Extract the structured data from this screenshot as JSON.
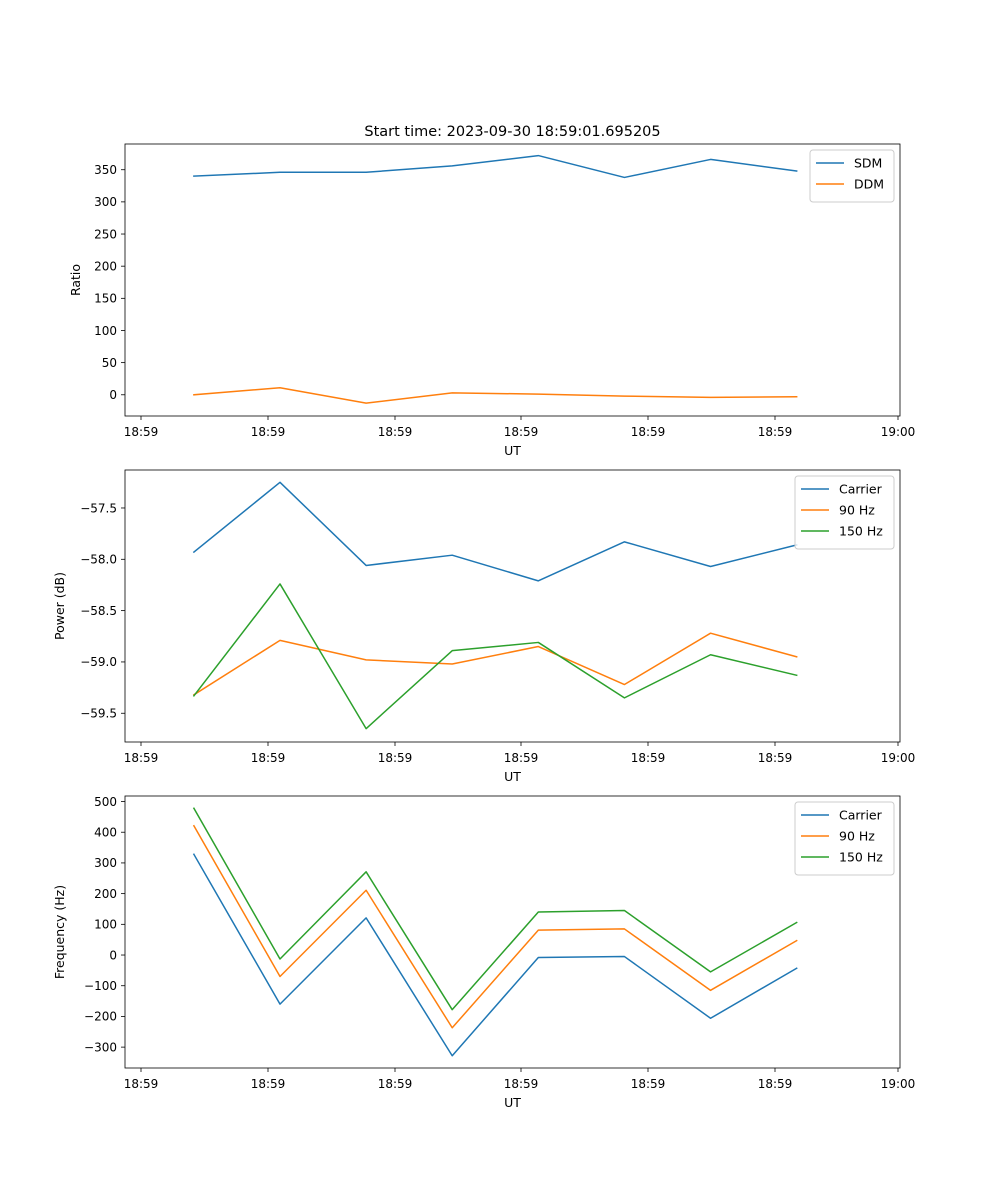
{
  "figure": {
    "title": "Start time: 2023-09-30 18:59:01.695205"
  },
  "colors": {
    "blue": "#1f77b4",
    "orange": "#ff7f0e",
    "green": "#2ca02c",
    "axis": "#000000",
    "legend_border": "#cccccc"
  },
  "chart_data": [
    {
      "type": "line",
      "title": "Start time: 2023-09-30 18:59:01.695205",
      "xlabel": "UT",
      "ylabel": "Ratio",
      "x_ticks": [
        "18:59",
        "18:59",
        "18:59",
        "18:59",
        "18:59",
        "18:59",
        "19:00"
      ],
      "x": [
        1,
        2,
        3,
        4,
        5,
        6,
        7,
        8
      ],
      "xlim": [
        0.2,
        9.2
      ],
      "ylim": [
        -33,
        390
      ],
      "y_ticks": [
        0,
        50,
        100,
        150,
        200,
        250,
        300,
        350
      ],
      "y_tick_labels": [
        "0",
        "50",
        "100",
        "150",
        "200",
        "250",
        "300",
        "350"
      ],
      "legend_position": "upper-right",
      "series": [
        {
          "name": "SDM",
          "color": "blue",
          "values": [
            340,
            346,
            346,
            356,
            372,
            338,
            366,
            348
          ]
        },
        {
          "name": "DDM",
          "color": "orange",
          "values": [
            0,
            11,
            -13,
            3,
            1,
            -2,
            -4,
            -3
          ]
        }
      ]
    },
    {
      "type": "line",
      "title": "",
      "xlabel": "UT",
      "ylabel": "Power (dB)",
      "x_ticks": [
        "18:59",
        "18:59",
        "18:59",
        "18:59",
        "18:59",
        "18:59",
        "19:00"
      ],
      "x": [
        1,
        2,
        3,
        4,
        5,
        6,
        7,
        8
      ],
      "xlim": [
        0.2,
        9.2
      ],
      "ylim": [
        -59.78,
        -57.13
      ],
      "y_ticks": [
        -59.5,
        -59.0,
        -58.5,
        -58.0,
        -57.5
      ],
      "y_tick_labels": [
        "−59.5",
        "−59.0",
        "−58.5",
        "−58.0",
        "−57.5"
      ],
      "legend_position": "upper-right",
      "series": [
        {
          "name": "Carrier",
          "color": "blue",
          "values": [
            -57.93,
            -57.25,
            -58.06,
            -57.96,
            -58.21,
            -57.83,
            -58.07,
            -57.86
          ]
        },
        {
          "name": "90 Hz",
          "color": "orange",
          "values": [
            -59.32,
            -58.79,
            -58.98,
            -59.02,
            -58.85,
            -59.22,
            -58.72,
            -58.95
          ]
        },
        {
          "name": "150 Hz",
          "color": "green",
          "values": [
            -59.33,
            -58.24,
            -59.65,
            -58.89,
            -58.81,
            -59.35,
            -58.93,
            -59.13
          ]
        }
      ]
    },
    {
      "type": "line",
      "title": "",
      "xlabel": "UT",
      "ylabel": "Frequency (Hz)",
      "x_ticks": [
        "18:59",
        "18:59",
        "18:59",
        "18:59",
        "18:59",
        "18:59",
        "19:00"
      ],
      "x": [
        1,
        2,
        3,
        4,
        5,
        6,
        7,
        8
      ],
      "xlim": [
        0.2,
        9.2
      ],
      "ylim": [
        -368,
        518
      ],
      "y_ticks": [
        -300,
        -200,
        -100,
        0,
        100,
        200,
        300,
        400,
        500
      ],
      "y_tick_labels": [
        "−300",
        "−200",
        "−100",
        "0",
        "100",
        "200",
        "300",
        "400",
        "500"
      ],
      "legend_position": "upper-right",
      "series": [
        {
          "name": "Carrier",
          "color": "blue",
          "values": [
            328,
            -160,
            121,
            -328,
            -8,
            -5,
            -206,
            -43
          ]
        },
        {
          "name": "90 Hz",
          "color": "orange",
          "values": [
            421,
            -70,
            211,
            -237,
            81,
            85,
            -115,
            47
          ]
        },
        {
          "name": "150 Hz",
          "color": "green",
          "values": [
            478,
            -13,
            271,
            -178,
            140,
            145,
            -55,
            106
          ]
        }
      ]
    }
  ]
}
